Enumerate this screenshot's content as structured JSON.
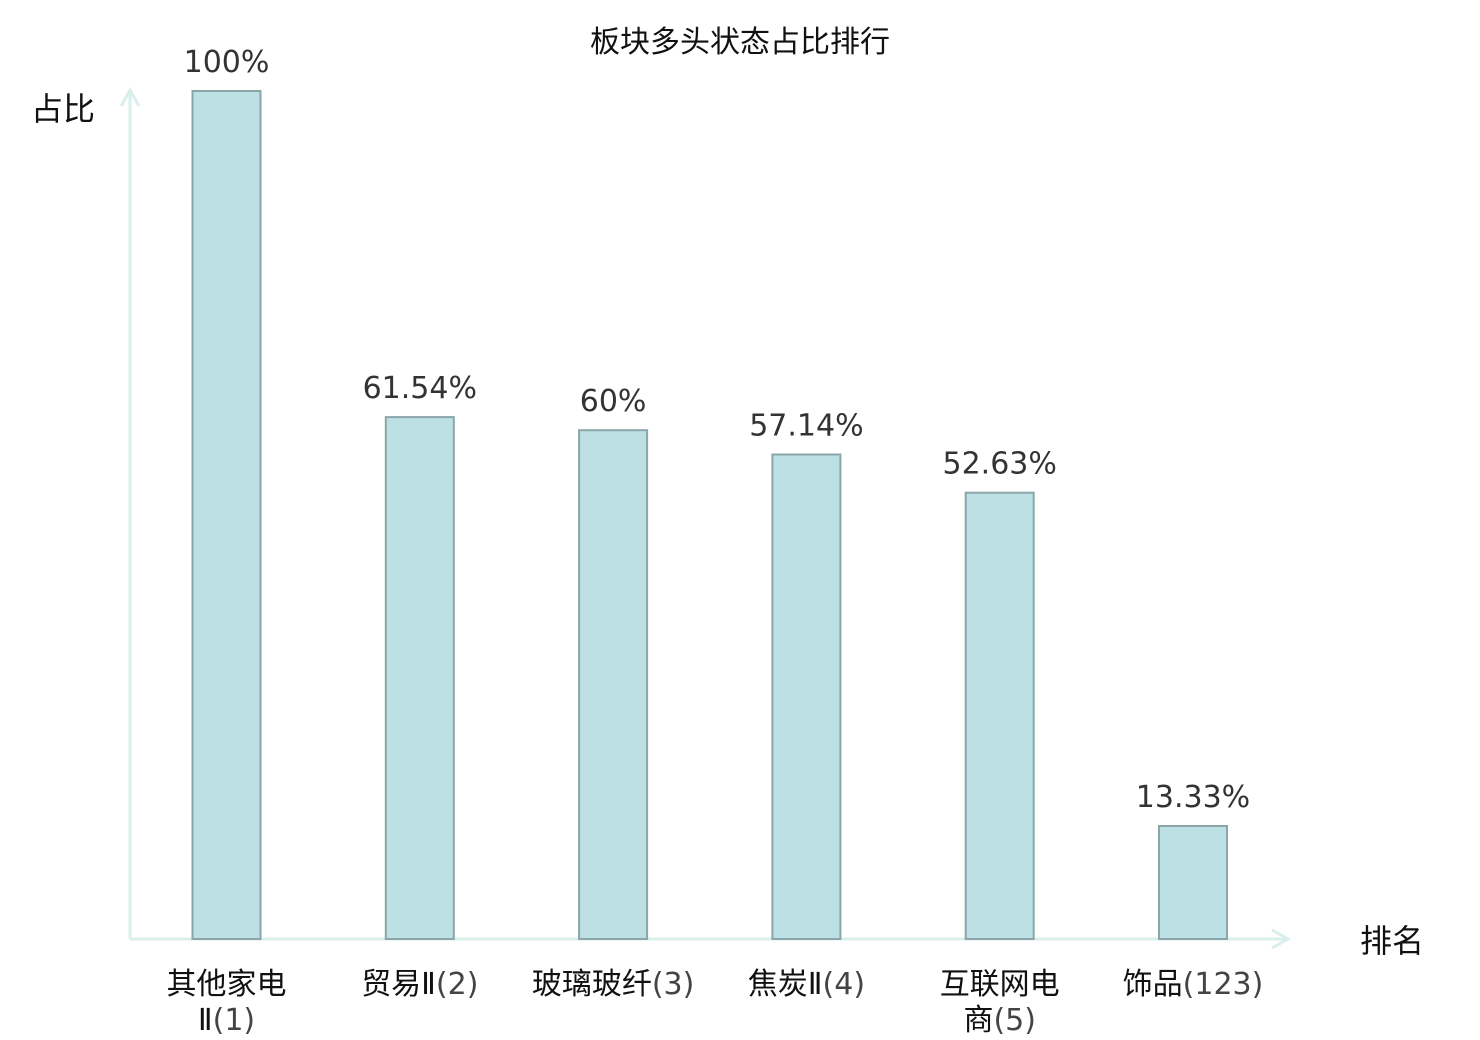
{
  "chart_data": {
    "type": "bar",
    "title": "板块多头状态占比排行",
    "ylabel": "占比",
    "xlabel": "排名",
    "ylim": [
      0,
      100
    ],
    "grid": false,
    "categories": [
      {
        "name_lines": [
          "其他家电",
          "Ⅱ"
        ],
        "rank": "(1)",
        "highlight": false
      },
      {
        "name_lines": [
          "贸易Ⅱ"
        ],
        "rank": "(2)",
        "highlight": false
      },
      {
        "name_lines": [
          "玻璃玻纤"
        ],
        "rank": "(3)",
        "highlight": false
      },
      {
        "name_lines": [
          "焦炭Ⅱ"
        ],
        "rank": "(4)",
        "highlight": false
      },
      {
        "name_lines": [
          "互联网电",
          "商"
        ],
        "rank": "(5)",
        "highlight": false
      },
      {
        "name_lines": [
          "饰品"
        ],
        "rank": "(123)",
        "highlight": true
      }
    ],
    "values": [
      100,
      61.54,
      60,
      57.14,
      52.63,
      13.33
    ],
    "value_labels": [
      "100%",
      "61.54%",
      "60%",
      "57.14%",
      "52.63%",
      "13.33%"
    ],
    "colors": {
      "bar_fill": "#bce0e3",
      "bar_stroke": "#8aa6a9",
      "axis": "#d9efec",
      "highlight_text": "#e0201b"
    }
  }
}
